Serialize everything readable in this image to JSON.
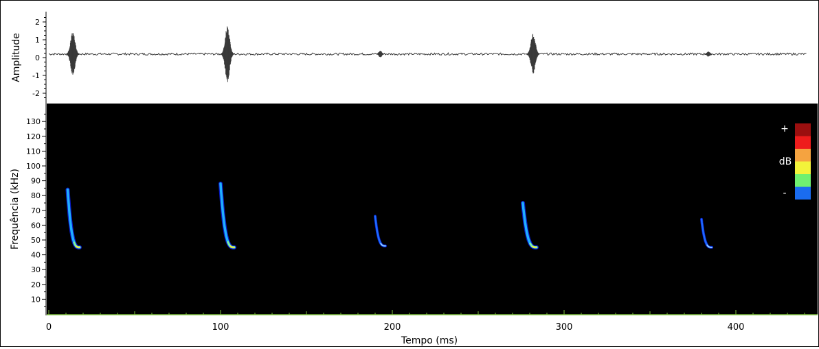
{
  "chart_data": [
    {
      "type": "line",
      "panel": "oscillogram",
      "ylabel": "Amplitude",
      "ylim": [
        -2.3,
        2.3
      ],
      "yticks": [
        2,
        1,
        0,
        -1,
        -2
      ],
      "baseline": 0.2,
      "bursts": [
        {
          "t_ms": 14,
          "max": 1.5,
          "min": -1.0
        },
        {
          "t_ms": 104,
          "max": 1.8,
          "min": -1.4
        },
        {
          "t_ms": 193,
          "max": 0.4,
          "min": 0.0
        },
        {
          "t_ms": 282,
          "max": 1.4,
          "min": -0.9
        },
        {
          "t_ms": 384,
          "max": 0.35,
          "min": 0.05
        }
      ],
      "colors": {
        "trace": "#3a3a3a"
      }
    },
    {
      "type": "heatmap",
      "panel": "spectrogram",
      "xlabel": "Tempo (ms)",
      "ylabel": "Frequência (kHz)",
      "xlim": [
        0,
        441
      ],
      "ylim": [
        0,
        138
      ],
      "xticks": [
        0,
        100,
        200,
        300,
        400
      ],
      "yticks": [
        10,
        20,
        30,
        40,
        50,
        60,
        70,
        80,
        90,
        100,
        110,
        120,
        130
      ],
      "calls": [
        {
          "t_start_ms": 11,
          "t_end_ms": 18,
          "f_start_khz": 84,
          "f_end_khz": 45,
          "intensity": "high"
        },
        {
          "t_start_ms": 100,
          "t_end_ms": 108,
          "f_start_khz": 88,
          "f_end_khz": 45,
          "intensity": "high"
        },
        {
          "t_start_ms": 190,
          "t_end_ms": 196,
          "f_start_khz": 66,
          "f_end_khz": 46,
          "intensity": "low"
        },
        {
          "t_start_ms": 276,
          "t_end_ms": 284,
          "f_start_khz": 75,
          "f_end_khz": 45,
          "intensity": "high"
        },
        {
          "t_start_ms": 380,
          "t_end_ms": 386,
          "f_start_khz": 64,
          "f_end_khz": 45,
          "intensity": "low"
        }
      ],
      "legend": {
        "plus": "+",
        "unit": "dB",
        "minus": "-",
        "colors": [
          "#9b0f0f",
          "#ee1c1c",
          "#f5a340",
          "#f3f33a",
          "#70f070",
          "#1a6cf0"
        ]
      },
      "colors": {
        "background": "#000000",
        "axis_line": "#7fbf3f"
      }
    }
  ]
}
